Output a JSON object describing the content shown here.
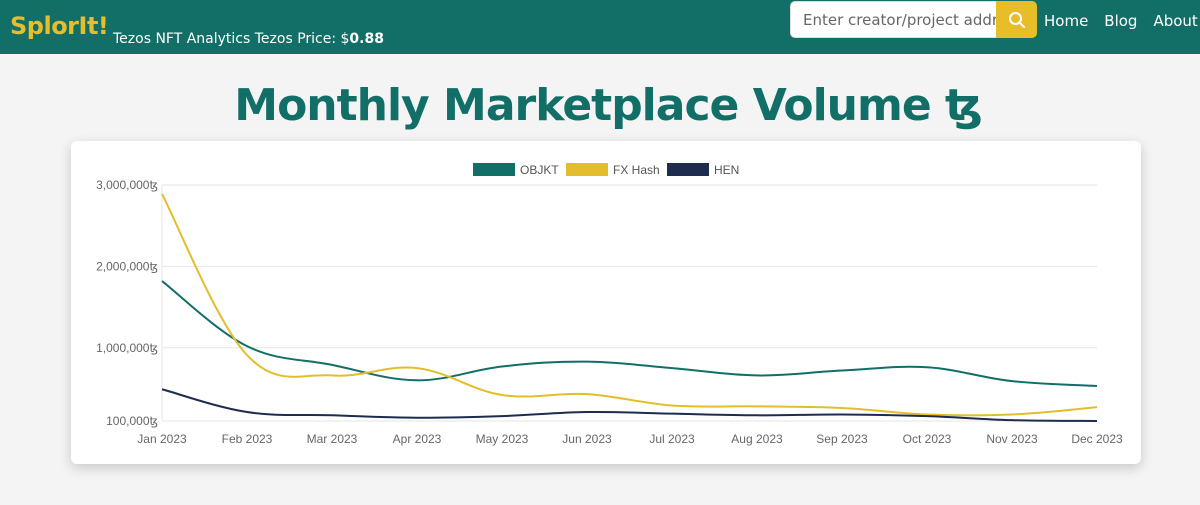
{
  "navbar": {
    "brand": "SplorIt!",
    "tagline_prefix": "Tezos NFT Analytics Tezos Price: $",
    "price": "0.88",
    "search_placeholder": "Enter creator/project address",
    "links": [
      "Home",
      "Blog",
      "About"
    ],
    "colors": {
      "bar": "#126f67",
      "brand": "#e8bd2a",
      "search_button": "#e8bd2a"
    },
    "search_icon": "search-icon"
  },
  "page": {
    "title": "Monthly Marketplace Volume ꜩ"
  },
  "chart_data": {
    "type": "line",
    "title": "",
    "xlabel": "",
    "ylabel": "",
    "categories": [
      "Jan 2023",
      "Feb 2023",
      "Mar 2023",
      "Apr 2023",
      "May 2023",
      "Jun 2023",
      "Jul 2023",
      "Aug 2023",
      "Sep 2023",
      "Oct 2023",
      "Nov 2023",
      "Dec 2023"
    ],
    "y_ticks": [
      "3,000,000ꜩ",
      "2,000,000ꜩ",
      "1,000,000ꜩ",
      "100,000ꜩ"
    ],
    "y_tick_values": [
      3000000,
      2000000,
      1000000,
      100000
    ],
    "ylim": [
      100000,
      3000000
    ],
    "grid": true,
    "legend_position": "top",
    "series": [
      {
        "name": "OBJKT",
        "color": "#126f67",
        "values": [
          1820000,
          1020000,
          790000,
          600000,
          770000,
          830000,
          750000,
          660000,
          720000,
          760000,
          590000,
          530000
        ]
      },
      {
        "name": "FX Hash",
        "color": "#e2be2c",
        "values": [
          2890000,
          910000,
          660000,
          750000,
          420000,
          430000,
          290000,
          280000,
          260000,
          180000,
          180000,
          270000
        ]
      },
      {
        "name": "HEN",
        "color": "#1d2c4f",
        "values": [
          490000,
          210000,
          170000,
          140000,
          160000,
          210000,
          190000,
          170000,
          180000,
          160000,
          110000,
          100000
        ]
      }
    ]
  }
}
